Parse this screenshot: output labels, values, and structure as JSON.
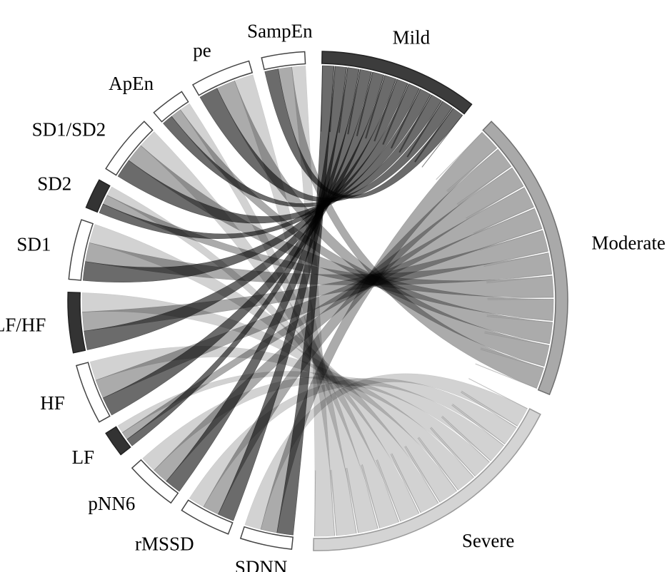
{
  "chart_data": {
    "type": "chord",
    "groups": [
      {
        "name": "Mild",
        "start": 1,
        "end": 38,
        "fill": "#3c3c3c",
        "outline": "#222222",
        "role": "target"
      },
      {
        "name": "Moderate",
        "start": 44,
        "end": 112,
        "fill": "#a9a9a9",
        "outline": "#6f6f6f",
        "role": "target"
      },
      {
        "name": "Severe",
        "start": 117,
        "end": 181,
        "fill": "#d4d4d4",
        "outline": "#9a9a9a",
        "role": "target"
      },
      {
        "name": "SDNN",
        "start": 186,
        "end": 198,
        "fill": "#ffffff",
        "outline": "#444444",
        "role": "source"
      },
      {
        "name": "rMSSD",
        "start": 201,
        "end": 213,
        "fill": "#ffffff",
        "outline": "#444444",
        "role": "source"
      },
      {
        "name": "pNN6",
        "start": 216,
        "end": 228,
        "fill": "#ffffff",
        "outline": "#444444",
        "role": "source"
      },
      {
        "name": "LF",
        "start": 232,
        "end": 238,
        "fill": "#333333",
        "outline": "#222222",
        "role": "source"
      },
      {
        "name": "HF",
        "start": 241,
        "end": 255,
        "fill": "#ffffff",
        "outline": "#444444",
        "role": "source"
      },
      {
        "name": "LF/HF",
        "start": 258,
        "end": 272,
        "fill": "#333333",
        "outline": "#222222",
        "role": "source"
      },
      {
        "name": "SD1",
        "start": 275,
        "end": 289,
        "fill": "#ffffff",
        "outline": "#444444",
        "role": "source"
      },
      {
        "name": "SD2",
        "start": 292,
        "end": 299,
        "fill": "#333333",
        "outline": "#222222",
        "role": "source"
      },
      {
        "name": "SD1/SD2",
        "start": 302,
        "end": 316,
        "fill": "#ffffff",
        "outline": "#444444",
        "role": "source"
      },
      {
        "name": "ApEn",
        "start": 319,
        "end": 327,
        "fill": "#ffffff",
        "outline": "#444444",
        "role": "source"
      },
      {
        "name": "pe",
        "start": 330,
        "end": 344,
        "fill": "#ffffff",
        "outline": "#444444",
        "role": "source"
      },
      {
        "name": "SampEn",
        "start": 347,
        "end": 357,
        "fill": "#ffffff",
        "outline": "#444444",
        "role": "source"
      }
    ],
    "links_to_severity": {
      "severities": [
        "Mild",
        "Moderate",
        "Severe"
      ],
      "colors": [
        "#4a4a4a",
        "#999999",
        "#c8c8c8"
      ],
      "shares": [
        0.333,
        0.333,
        0.334
      ]
    }
  }
}
